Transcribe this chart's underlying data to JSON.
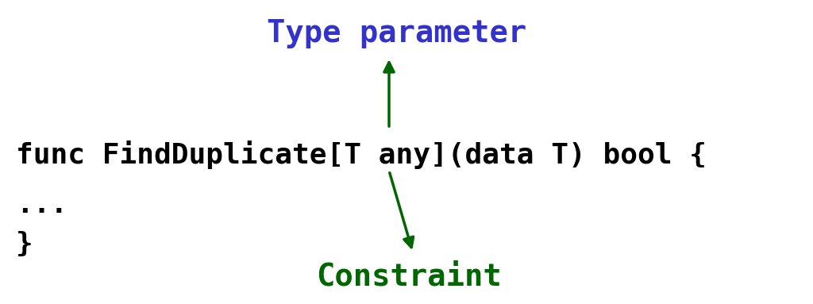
{
  "bg_color": "#ffffff",
  "code_text": "func FindDuplicate[T any](data T) bool {",
  "code_line2": "...",
  "code_line3": "}",
  "code_color": "#000000",
  "code_fontsize": 26,
  "label_type_param": "Type parameter",
  "label_type_param_color": "#3333cc",
  "label_type_param_fontsize": 28,
  "label_constraint": "Constraint",
  "label_constraint_color": "#006600",
  "label_constraint_fontsize": 28,
  "arrow_color": "#006600",
  "figw": 10.24,
  "figh": 3.83,
  "dpi": 100
}
